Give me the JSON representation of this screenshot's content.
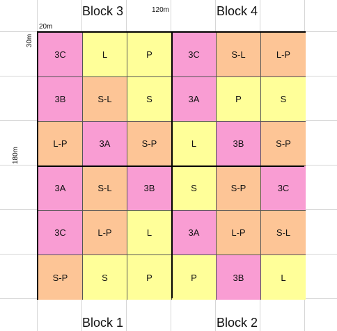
{
  "colors": {
    "3A": "#f99dd3",
    "3B": "#f99dd3",
    "3C": "#f99dd3",
    "L": "#ffff99",
    "P": "#ffff99",
    "S": "#ffff99",
    "S-L": "#fdc596",
    "L-P": "#fdc596",
    "S-P": "#fdc596"
  },
  "labels": {
    "block_top_left": "Block 3",
    "block_top_right": "Block 4",
    "block_bottom_left": "Block 1",
    "block_bottom_right": "Block 2",
    "dim_width_total": "120m",
    "dim_width_plot": "20m",
    "dim_height_plot": "30m",
    "dim_height_total": "180m"
  },
  "grid": [
    [
      "3C",
      "L",
      "P",
      "3C",
      "S-L",
      "L-P"
    ],
    [
      "3B",
      "S-L",
      "S",
      "3A",
      "P",
      "S"
    ],
    [
      "L-P",
      "3A",
      "S-P",
      "L",
      "3B",
      "S-P"
    ],
    [
      "3A",
      "S-L",
      "3B",
      "S",
      "S-P",
      "3C"
    ],
    [
      "3C",
      "L-P",
      "L",
      "3A",
      "L-P",
      "S-L"
    ],
    [
      "S-P",
      "S",
      "P",
      "P",
      "3B",
      "L"
    ]
  ]
}
